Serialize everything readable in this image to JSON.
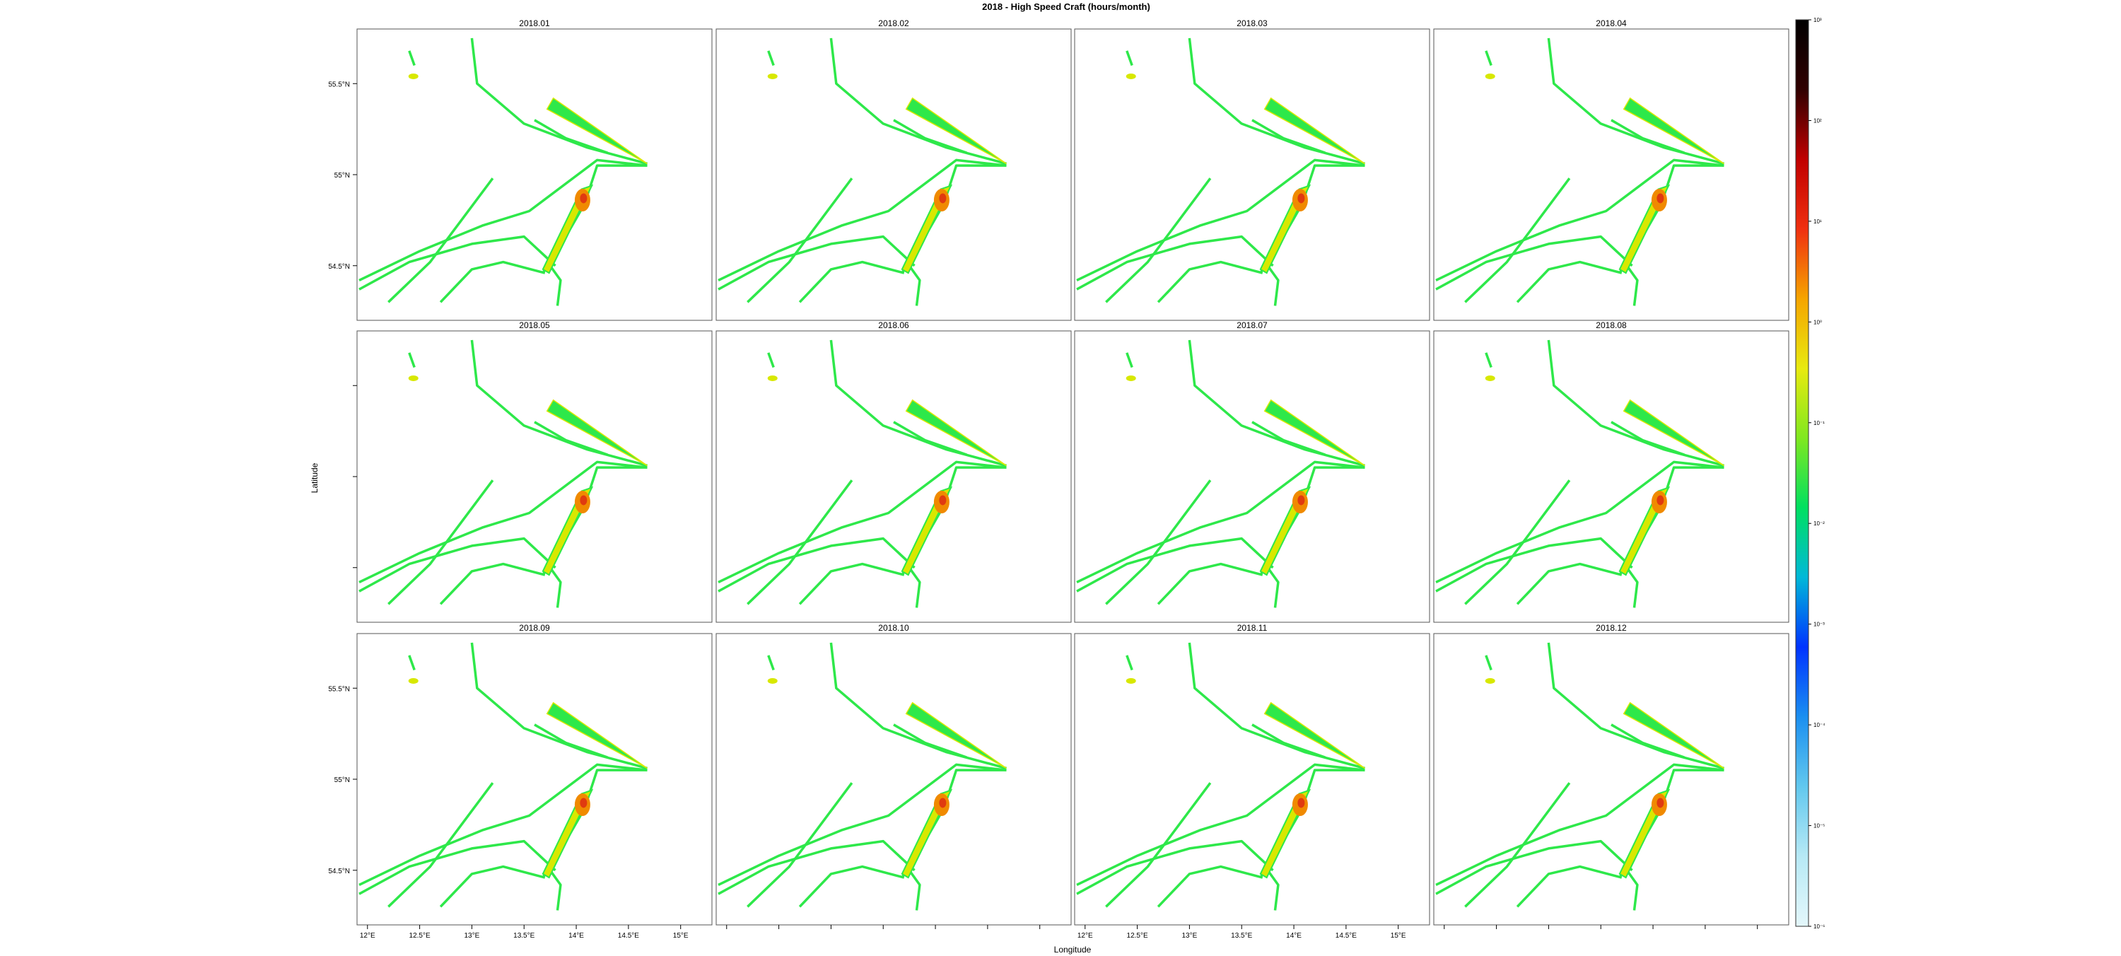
{
  "chart_data": {
    "type": "heatmap",
    "title": "2018 - High Speed Craft (hours/month)",
    "xlabel": "Longitude",
    "ylabel": "Latitude",
    "xlim": [
      11.9,
      15.3
    ],
    "ylim": [
      54.2,
      55.8
    ],
    "x_ticks": [
      {
        "value": 12.0,
        "label": "12°E"
      },
      {
        "value": 12.5,
        "label": "12.5°E"
      },
      {
        "value": 13.0,
        "label": "13°E"
      },
      {
        "value": 13.5,
        "label": "13.5°E"
      },
      {
        "value": 14.0,
        "label": "14°E"
      },
      {
        "value": 14.5,
        "label": "14.5°E"
      },
      {
        "value": 15.0,
        "label": "15°E"
      }
    ],
    "y_ticks": [
      {
        "value": 54.5,
        "label": "54.5°N"
      },
      {
        "value": 55.0,
        "label": "55°N"
      },
      {
        "value": 55.5,
        "label": "55.5°N"
      }
    ],
    "panels": [
      "2018.01",
      "2018.02",
      "2018.03",
      "2018.04",
      "2018.05",
      "2018.06",
      "2018.07",
      "2018.08",
      "2018.09",
      "2018.10",
      "2018.11",
      "2018.12"
    ],
    "colorbar": {
      "scale": "log",
      "range": [
        1e-06,
        1000
      ],
      "ticks": [
        {
          "value": 1e-06,
          "label": "10⁻⁶"
        },
        {
          "value": 1e-05,
          "label": "10⁻⁵"
        },
        {
          "value": 0.0001,
          "label": "10⁻⁴"
        },
        {
          "value": 0.001,
          "label": "10⁻³"
        },
        {
          "value": 0.01,
          "label": "10⁻²"
        },
        {
          "value": 0.1,
          "label": "10⁻¹"
        },
        {
          "value": 1,
          "label": "10⁰"
        },
        {
          "value": 10,
          "label": "10¹"
        },
        {
          "value": 100,
          "label": "10²"
        },
        {
          "value": 1000,
          "label": "10³"
        }
      ],
      "colors": [
        "#e4f7fb",
        "#b7e9f5",
        "#62c8ee",
        "#1b8ff0",
        "#0033ff",
        "#00b8d8",
        "#00e060",
        "#7fe820",
        "#e8ea10",
        "#f5a500",
        "#f03010",
        "#c00000",
        "#300000",
        "#000000"
      ]
    },
    "track_color_low": "#2ee84a",
    "track_color_mid": "#d8e800",
    "track_color_high": "#f08a00",
    "track_color_peak": "#e03a10"
  }
}
